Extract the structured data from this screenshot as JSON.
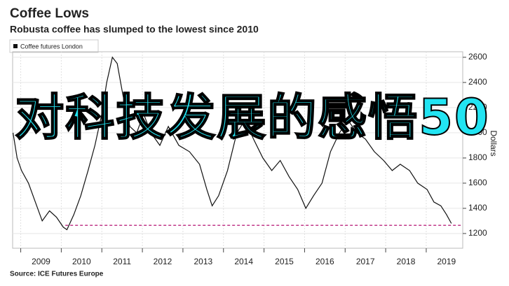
{
  "chart_data": {
    "type": "line",
    "title": "Coffee Lows",
    "subtitle": "Robusta coffee has slumped to the lowest since 2010",
    "y_label": "Dollars",
    "source": "Source: ICE Futures Europe",
    "overlay_text": "对科技发展的感悟50",
    "series": [
      {
        "name": "Coffee futures London",
        "color": "#111111",
        "x": [
          2008.81,
          2008.91,
          2009.02,
          2009.19,
          2009.36,
          2009.53,
          2009.71,
          2009.88,
          2010.05,
          2010.14,
          2010.31,
          2010.48,
          2010.66,
          2010.83,
          2011.0,
          2011.12,
          2011.26,
          2011.38,
          2011.52,
          2011.69,
          2011.86,
          2012.03,
          2012.21,
          2012.43,
          2012.64,
          2012.9,
          2013.16,
          2013.41,
          2013.59,
          2013.72,
          2013.88,
          2014.1,
          2014.33,
          2014.53,
          2014.74,
          2014.97,
          2015.19,
          2015.4,
          2015.62,
          2015.83,
          2016.03,
          2016.22,
          2016.43,
          2016.64,
          2016.86,
          2017.07,
          2017.29,
          2017.5,
          2017.72,
          2017.95,
          2018.16,
          2018.36,
          2018.59,
          2018.79,
          2019.02,
          2019.19,
          2019.36,
          2019.5,
          2019.62
        ],
        "values": [
          2000,
          1800,
          1700,
          1600,
          1450,
          1300,
          1380,
          1330,
          1250,
          1230,
          1350,
          1500,
          1700,
          1900,
          2150,
          2400,
          2600,
          2550,
          2300,
          2050,
          2000,
          2150,
          2000,
          1900,
          2050,
          1900,
          1850,
          1750,
          1550,
          1420,
          1500,
          1700,
          2000,
          2100,
          1950,
          1800,
          1700,
          1780,
          1650,
          1550,
          1400,
          1500,
          1600,
          1850,
          2000,
          2100,
          2000,
          1950,
          1850,
          1780,
          1700,
          1750,
          1700,
          1600,
          1550,
          1450,
          1420,
          1350,
          1280
        ]
      }
    ],
    "reference_line": {
      "value": 1265,
      "color": "#c0398a",
      "x": [
        2010.1,
        2019.85
      ]
    },
    "xlim": [
      2008.8,
      2019.9
    ],
    "ylim": [
      1083,
      2644
    ],
    "xticks": [
      {
        "value": 2009.5,
        "label": "2009"
      },
      {
        "value": 2010.5,
        "label": "2010"
      },
      {
        "value": 2011.5,
        "label": "2011"
      },
      {
        "value": 2012.5,
        "label": "2012"
      },
      {
        "value": 2013.5,
        "label": "2013"
      },
      {
        "value": 2014.5,
        "label": "2014"
      },
      {
        "value": 2015.5,
        "label": "2015"
      },
      {
        "value": 2016.5,
        "label": "2016"
      },
      {
        "value": 2017.5,
        "label": "2017"
      },
      {
        "value": 2018.5,
        "label": "2018"
      },
      {
        "value": 2019.5,
        "label": "2019"
      }
    ],
    "xgrid": [
      2009,
      2010,
      2011,
      2012,
      2013,
      2014,
      2015,
      2016,
      2017,
      2018,
      2019
    ],
    "yticks": [
      1200,
      1400,
      1600,
      1800,
      2000,
      2200,
      2400,
      2600
    ],
    "grid": true
  }
}
